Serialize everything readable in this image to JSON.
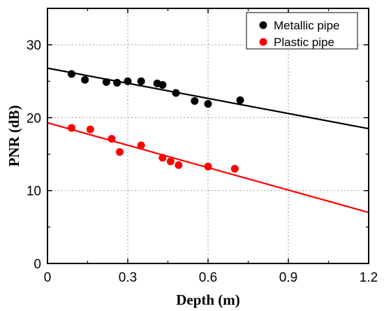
{
  "chart_data": {
    "type": "scatter",
    "xlabel": "Depth (m)",
    "ylabel": "PNR (dB)",
    "xlim": [
      0,
      1.2
    ],
    "ylim": [
      0,
      35
    ],
    "xticks": [
      0,
      0.3,
      0.6,
      0.9,
      1.2
    ],
    "xtick_labels": [
      "0",
      "0.3",
      "0.6",
      "0.9",
      "1.2"
    ],
    "yticks": [
      0,
      10,
      20,
      30
    ],
    "ytick_labels": [
      "0",
      "10",
      "20",
      "30"
    ],
    "grid": "dotted",
    "legend_position": "top-right",
    "series": [
      {
        "name": "Metallic pipe",
        "color": "#000000",
        "points": [
          [
            0.09,
            26.0
          ],
          [
            0.14,
            25.2
          ],
          [
            0.22,
            24.9
          ],
          [
            0.26,
            24.8
          ],
          [
            0.3,
            25.0
          ],
          [
            0.35,
            25.0
          ],
          [
            0.41,
            24.7
          ],
          [
            0.43,
            24.5
          ],
          [
            0.48,
            23.4
          ],
          [
            0.55,
            22.3
          ],
          [
            0.6,
            21.9
          ],
          [
            0.72,
            22.4
          ]
        ],
        "fit": {
          "x": [
            0,
            1.2
          ],
          "y": [
            26.8,
            18.5
          ]
        }
      },
      {
        "name": "Plastic pipe",
        "color": "#ff0000",
        "points": [
          [
            0.09,
            18.6
          ],
          [
            0.16,
            18.4
          ],
          [
            0.24,
            17.1
          ],
          [
            0.27,
            15.3
          ],
          [
            0.35,
            16.2
          ],
          [
            0.43,
            14.5
          ],
          [
            0.46,
            14.0
          ],
          [
            0.49,
            13.5
          ],
          [
            0.6,
            13.3
          ],
          [
            0.7,
            13.0
          ]
        ],
        "fit": {
          "x": [
            0,
            1.2
          ],
          "y": [
            19.3,
            7.0
          ]
        }
      }
    ]
  }
}
